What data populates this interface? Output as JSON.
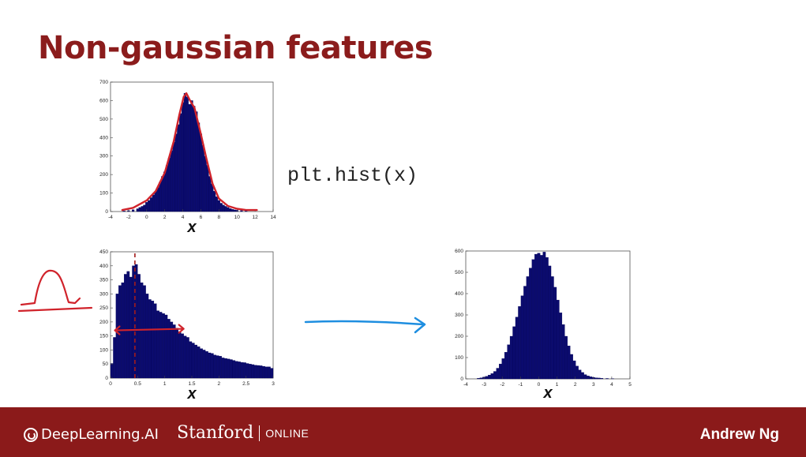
{
  "slide": {
    "title": "Non-gaussian features",
    "code": "plt.hist(x)",
    "footer": {
      "brand": "DeepLearning.AI",
      "partner": "Stanford",
      "partner_sub": "ONLINE",
      "author": "Andrew Ng"
    }
  },
  "colors": {
    "title": "#8b1c1c",
    "footer_bg": "#8b1a1a",
    "bars": "#0b0b6e",
    "annotation_red": "#d0232b",
    "arrow_blue": "#1e8ee0"
  },
  "chart_data": [
    {
      "type": "bar",
      "xlabel": "x",
      "xlim": [
        -4,
        14
      ],
      "ylim": [
        0,
        700
      ],
      "xticks": [
        -4,
        -2,
        0,
        2,
        4,
        6,
        8,
        10,
        12,
        14
      ],
      "yticks": [
        0,
        100,
        200,
        300,
        400,
        500,
        600,
        700
      ],
      "bin_width": 0.25,
      "bins": [
        [
          -2.5,
          3
        ],
        [
          -2,
          5
        ],
        [
          -1.5,
          10
        ],
        [
          -1,
          15
        ],
        [
          -0.75,
          22
        ],
        [
          -0.5,
          28
        ],
        [
          -0.25,
          35
        ],
        [
          0,
          50
        ],
        [
          0.25,
          60
        ],
        [
          0.5,
          75
        ],
        [
          0.75,
          90
        ],
        [
          1,
          110
        ],
        [
          1.25,
          130
        ],
        [
          1.5,
          160
        ],
        [
          1.75,
          190
        ],
        [
          2,
          215
        ],
        [
          2.25,
          250
        ],
        [
          2.5,
          290
        ],
        [
          2.75,
          330
        ],
        [
          3,
          375
        ],
        [
          3.25,
          420
        ],
        [
          3.5,
          470
        ],
        [
          3.75,
          530
        ],
        [
          4,
          590
        ],
        [
          4.25,
          640
        ],
        [
          4.5,
          620
        ],
        [
          4.75,
          580
        ],
        [
          5,
          600
        ],
        [
          5.25,
          570
        ],
        [
          5.5,
          540
        ],
        [
          5.75,
          480
        ],
        [
          6,
          420
        ],
        [
          6.25,
          360
        ],
        [
          6.5,
          300
        ],
        [
          6.75,
          250
        ],
        [
          7,
          190
        ],
        [
          7.25,
          150
        ],
        [
          7.5,
          110
        ],
        [
          7.75,
          80
        ],
        [
          8,
          60
        ],
        [
          8.25,
          45
        ],
        [
          8.5,
          35
        ],
        [
          8.75,
          28
        ],
        [
          9,
          22
        ],
        [
          9.25,
          16
        ],
        [
          9.5,
          12
        ],
        [
          9.75,
          9
        ],
        [
          10,
          7
        ],
        [
          10.5,
          5
        ],
        [
          11,
          3
        ]
      ],
      "curve": [
        [
          -2.7,
          8
        ],
        [
          -1.5,
          20
        ],
        [
          0,
          60
        ],
        [
          1,
          110
        ],
        [
          2,
          210
        ],
        [
          3,
          380
        ],
        [
          3.6,
          520
        ],
        [
          4.1,
          620
        ],
        [
          4.4,
          640
        ],
        [
          4.8,
          600
        ],
        [
          5.3,
          560
        ],
        [
          6,
          420
        ],
        [
          6.6,
          290
        ],
        [
          7.3,
          150
        ],
        [
          8,
          70
        ],
        [
          9,
          30
        ],
        [
          10,
          15
        ],
        [
          11,
          8
        ],
        [
          12.2,
          8
        ]
      ]
    },
    {
      "type": "bar",
      "xlabel": "x",
      "xlim": [
        0,
        3
      ],
      "ylim": [
        0,
        450
      ],
      "xticks": [
        0,
        0.5,
        1,
        1.5,
        2,
        2.5,
        3
      ],
      "yticks": [
        0,
        50,
        100,
        150,
        200,
        250,
        300,
        350,
        400,
        450
      ],
      "bin_width": 0.05,
      "bins": [
        [
          0.025,
          52
        ],
        [
          0.075,
          145
        ],
        [
          0.125,
          300
        ],
        [
          0.175,
          330
        ],
        [
          0.225,
          340
        ],
        [
          0.275,
          370
        ],
        [
          0.325,
          380
        ],
        [
          0.375,
          360
        ],
        [
          0.425,
          400
        ],
        [
          0.475,
          405
        ],
        [
          0.525,
          370
        ],
        [
          0.575,
          340
        ],
        [
          0.625,
          330
        ],
        [
          0.675,
          300
        ],
        [
          0.725,
          280
        ],
        [
          0.775,
          275
        ],
        [
          0.825,
          265
        ],
        [
          0.875,
          240
        ],
        [
          0.925,
          235
        ],
        [
          0.975,
          230
        ],
        [
          1.025,
          225
        ],
        [
          1.075,
          210
        ],
        [
          1.125,
          200
        ],
        [
          1.175,
          190
        ],
        [
          1.225,
          178
        ],
        [
          1.275,
          165
        ],
        [
          1.325,
          158
        ],
        [
          1.375,
          150
        ],
        [
          1.425,
          145
        ],
        [
          1.475,
          130
        ],
        [
          1.525,
          125
        ],
        [
          1.575,
          118
        ],
        [
          1.625,
          112
        ],
        [
          1.675,
          105
        ],
        [
          1.725,
          100
        ],
        [
          1.775,
          95
        ],
        [
          1.825,
          90
        ],
        [
          1.875,
          88
        ],
        [
          1.925,
          82
        ],
        [
          1.975,
          80
        ],
        [
          2.025,
          78
        ],
        [
          2.075,
          72
        ],
        [
          2.125,
          70
        ],
        [
          2.175,
          68
        ],
        [
          2.225,
          66
        ],
        [
          2.275,
          63
        ],
        [
          2.325,
          60
        ],
        [
          2.375,
          58
        ],
        [
          2.425,
          56
        ],
        [
          2.475,
          55
        ],
        [
          2.525,
          52
        ],
        [
          2.575,
          50
        ],
        [
          2.625,
          48
        ],
        [
          2.675,
          46
        ],
        [
          2.725,
          45
        ],
        [
          2.775,
          44
        ],
        [
          2.825,
          42
        ],
        [
          2.875,
          40
        ],
        [
          2.925,
          40
        ],
        [
          2.975,
          35
        ]
      ]
    },
    {
      "type": "bar",
      "xlabel": "x",
      "xlim": [
        -4,
        5
      ],
      "ylim": [
        0,
        600
      ],
      "xticks": [
        -4,
        -3,
        -2,
        -1,
        0,
        1,
        2,
        3,
        4,
        5
      ],
      "yticks": [
        0,
        100,
        200,
        300,
        400,
        500,
        600
      ],
      "bin_width": 0.15,
      "bins": [
        [
          -3.3,
          3
        ],
        [
          -3.15,
          5
        ],
        [
          -3,
          8
        ],
        [
          -2.85,
          12
        ],
        [
          -2.7,
          18
        ],
        [
          -2.55,
          25
        ],
        [
          -2.4,
          35
        ],
        [
          -2.25,
          50
        ],
        [
          -2.1,
          70
        ],
        [
          -1.95,
          95
        ],
        [
          -1.8,
          125
        ],
        [
          -1.65,
          160
        ],
        [
          -1.5,
          200
        ],
        [
          -1.35,
          245
        ],
        [
          -1.2,
          290
        ],
        [
          -1.05,
          340
        ],
        [
          -0.9,
          390
        ],
        [
          -0.75,
          435
        ],
        [
          -0.6,
          480
        ],
        [
          -0.45,
          520
        ],
        [
          -0.3,
          560
        ],
        [
          -0.15,
          585
        ],
        [
          0,
          590
        ],
        [
          0.15,
          580
        ],
        [
          0.3,
          595
        ],
        [
          0.45,
          570
        ],
        [
          0.6,
          530
        ],
        [
          0.75,
          480
        ],
        [
          0.9,
          430
        ],
        [
          1.05,
          370
        ],
        [
          1.2,
          310
        ],
        [
          1.35,
          255
        ],
        [
          1.5,
          200
        ],
        [
          1.65,
          155
        ],
        [
          1.8,
          115
        ],
        [
          1.95,
          85
        ],
        [
          2.1,
          60
        ],
        [
          2.25,
          42
        ],
        [
          2.4,
          30
        ],
        [
          2.55,
          20
        ],
        [
          2.7,
          14
        ],
        [
          2.85,
          10
        ],
        [
          3,
          7
        ],
        [
          3.15,
          5
        ],
        [
          3.3,
          4
        ],
        [
          3.45,
          3
        ],
        [
          3.75,
          2
        ],
        [
          4.05,
          1
        ]
      ]
    }
  ]
}
